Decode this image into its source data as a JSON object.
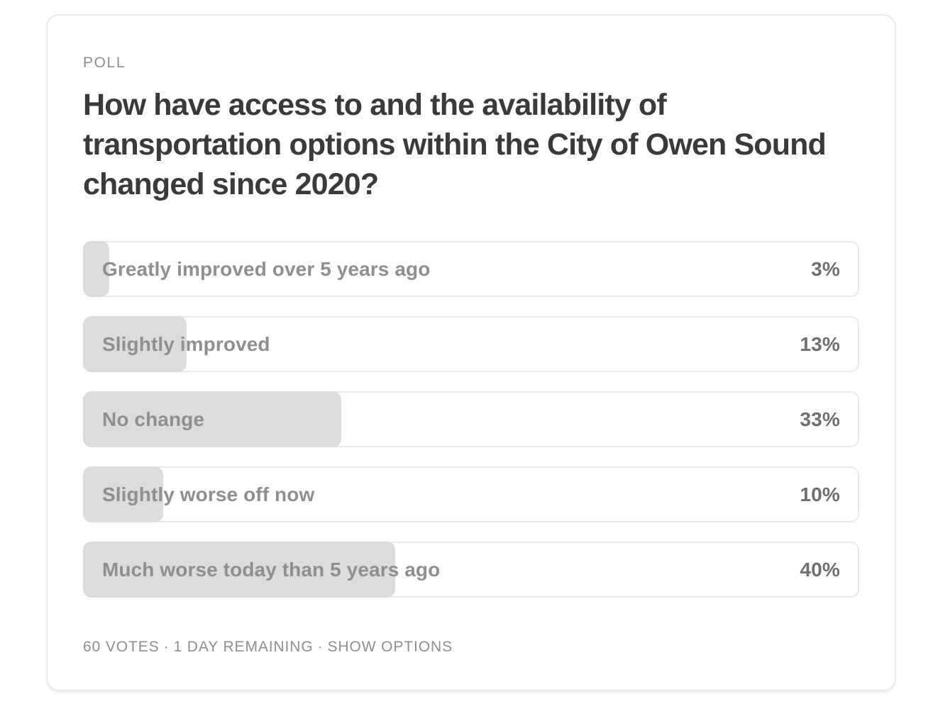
{
  "poll": {
    "eyebrow": "POLL",
    "question": "How have access to and the availability of transportation options within the City of Owen Sound changed since 2020?",
    "options": [
      {
        "label": "Greatly improved over 5 years ago",
        "percent": 3,
        "percent_label": "3%"
      },
      {
        "label": "Slightly improved",
        "percent": 13,
        "percent_label": "13%"
      },
      {
        "label": "No change",
        "percent": 33,
        "percent_label": "33%"
      },
      {
        "label": "Slightly worse off now",
        "percent": 10,
        "percent_label": "10%"
      },
      {
        "label": "Much worse today than 5 years ago",
        "percent": 40,
        "percent_label": "40%"
      }
    ],
    "footer": {
      "votes": "60 VOTES",
      "separator": "·",
      "remaining": "1 DAY REMAINING",
      "show_options": "SHOW OPTIONS"
    },
    "colors": {
      "bar_fill": "#dcdcdc",
      "row_border": "#e9e9e9",
      "card_border": "#e9e9e9",
      "title_text": "#3a3a3c",
      "muted_text": "#8e8e93",
      "percent_text": "#6e6e73"
    }
  }
}
